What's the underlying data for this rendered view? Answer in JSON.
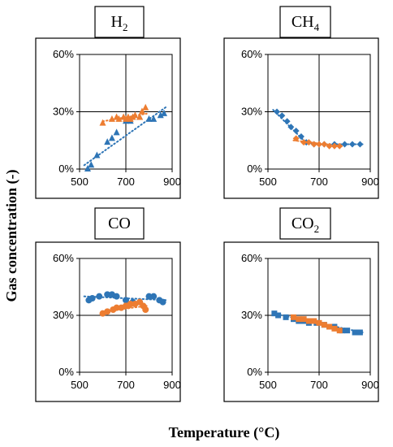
{
  "colors": {
    "blue": "#2E75B6",
    "orange": "#ED7D31"
  },
  "figure": {
    "ylabel": "Gas concentration (-)",
    "xlabel": "Temperature (°C)"
  },
  "chart_data": [
    {
      "type": "scatter",
      "title": "H",
      "title_sub": "2",
      "xlim": [
        500,
        900
      ],
      "ylim": [
        0,
        60
      ],
      "xticks": [
        "500",
        "700",
        "900"
      ],
      "yticks": [
        "0%",
        "30%",
        "60%"
      ],
      "grid": "center-cross",
      "series": [
        {
          "color": "blue",
          "marker": "triangle",
          "trend": [
            [
              520,
              2
            ],
            [
              880,
              33
            ]
          ],
          "x": [
            535,
            550,
            575,
            620,
            640,
            660,
            700,
            720,
            760,
            800,
            820,
            850,
            865
          ],
          "y": [
            0,
            2,
            7,
            14,
            16,
            19,
            25,
            25,
            27,
            26,
            26,
            28,
            29
          ]
        },
        {
          "color": "orange",
          "marker": "triangle",
          "trend": [
            [
              600,
              25
            ],
            [
              790,
              29
            ]
          ],
          "x": [
            600,
            640,
            660,
            670,
            690,
            700,
            710,
            720,
            730,
            740,
            760,
            770,
            785
          ],
          "y": [
            24,
            26,
            27,
            26,
            27,
            26,
            27,
            26,
            27,
            28,
            27,
            30,
            32
          ]
        }
      ]
    },
    {
      "type": "scatter",
      "title": "CH",
      "title_sub": "4",
      "xlim": [
        500,
        900
      ],
      "ylim": [
        0,
        60
      ],
      "xticks": [
        "500",
        "700",
        "900"
      ],
      "yticks": [
        "0%",
        "30%",
        "60%"
      ],
      "grid": "center-cross",
      "series": [
        {
          "color": "blue",
          "marker": "diamond",
          "trend": [
            [
              520,
              31
            ],
            [
              640,
              15
            ],
            [
              680,
              13
            ],
            [
              870,
              13
            ]
          ],
          "x": [
            535,
            555,
            575,
            590,
            610,
            630,
            650,
            680,
            720,
            760,
            800,
            830,
            860
          ],
          "y": [
            30,
            28,
            25,
            22,
            20,
            17,
            14,
            13,
            13,
            13,
            13,
            13,
            13
          ]
        },
        {
          "color": "orange",
          "marker": "diamond",
          "trend": [
            [
              600,
              15
            ],
            [
              790,
              12
            ]
          ],
          "x": [
            610,
            640,
            660,
            680,
            700,
            720,
            740,
            760,
            780
          ],
          "y": [
            16,
            14,
            14,
            13,
            13,
            13,
            12,
            12,
            12
          ]
        }
      ]
    },
    {
      "type": "scatter",
      "title": "CO",
      "title_sub": "",
      "xlim": [
        500,
        900
      ],
      "ylim": [
        0,
        60
      ],
      "xticks": [
        "500",
        "700",
        "900"
      ],
      "yticks": [
        "0%",
        "30%",
        "60%"
      ],
      "grid": "center-cross",
      "series": [
        {
          "color": "blue",
          "marker": "circle",
          "trend": [
            [
              520,
              40
            ],
            [
              880,
              38
            ]
          ],
          "x": [
            540,
            555,
            585,
            620,
            640,
            660,
            700,
            730,
            760,
            800,
            820,
            845,
            860
          ],
          "y": [
            38,
            39,
            40,
            41,
            41,
            40,
            38,
            37,
            37,
            40,
            40,
            38,
            37
          ]
        },
        {
          "color": "orange",
          "marker": "circle",
          "trend": [
            [
              600,
              32
            ],
            [
              790,
              35
            ]
          ],
          "x": [
            600,
            620,
            645,
            660,
            680,
            700,
            710,
            720,
            740,
            760,
            775,
            785
          ],
          "y": [
            31,
            32,
            33,
            34,
            34,
            35,
            35,
            36,
            36,
            37,
            35,
            33
          ]
        }
      ]
    },
    {
      "type": "scatter",
      "title": "CO",
      "title_sub": "2",
      "xlim": [
        500,
        900
      ],
      "ylim": [
        0,
        60
      ],
      "xticks": [
        "500",
        "700",
        "900"
      ],
      "yticks": [
        "0%",
        "30%",
        "60%"
      ],
      "grid": "center-cross",
      "series": [
        {
          "color": "blue",
          "marker": "square",
          "trend": [
            [
              520,
              31
            ],
            [
              870,
              21
            ]
          ],
          "x": [
            525,
            540,
            570,
            600,
            620,
            640,
            660,
            690,
            720,
            740,
            760,
            790,
            810,
            840,
            860
          ],
          "y": [
            31,
            30,
            29,
            28,
            27,
            27,
            26,
            26,
            25,
            24,
            24,
            22,
            22,
            21,
            21
          ]
        },
        {
          "color": "orange",
          "marker": "square",
          "trend": [
            [
              600,
              29
            ],
            [
              790,
              22
            ]
          ],
          "x": [
            600,
            620,
            640,
            660,
            680,
            700,
            720,
            740,
            760,
            780
          ],
          "y": [
            29,
            28,
            28,
            27,
            27,
            26,
            25,
            24,
            23,
            22
          ]
        }
      ]
    }
  ]
}
